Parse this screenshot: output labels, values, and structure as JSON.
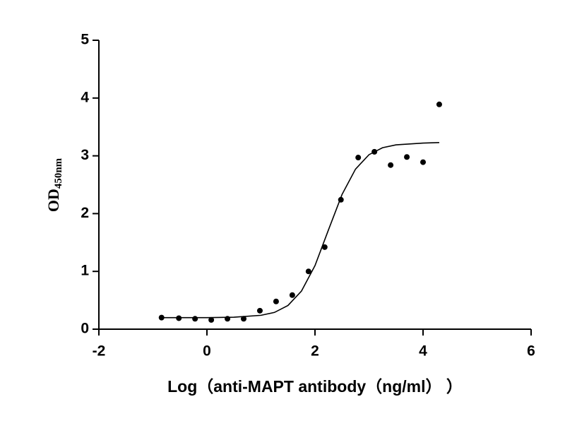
{
  "chart_data": {
    "type": "scatter",
    "xlabel": "Log（anti-MAPT antibody（ng/ml） ）",
    "ylabel": "OD",
    "ylabel_sub": "450nm",
    "xlim": [
      -2,
      6
    ],
    "xticks": [
      -2,
      0,
      2,
      4,
      6
    ],
    "ylim": [
      0,
      5
    ],
    "yticks": [
      0,
      1,
      2,
      3,
      4,
      5
    ],
    "series": [
      {
        "kind": "points",
        "color": "#000000",
        "x": [
          -0.84,
          -0.52,
          -0.22,
          0.08,
          0.38,
          0.68,
          0.98,
          1.28,
          1.58,
          1.88,
          2.18,
          2.48,
          2.8,
          3.1,
          3.4,
          3.7,
          4.0,
          4.3
        ],
        "values": [
          0.2,
          0.19,
          0.18,
          0.16,
          0.18,
          0.18,
          0.32,
          0.48,
          0.59,
          1.0,
          1.42,
          2.24,
          2.97,
          3.07,
          2.84,
          2.98,
          2.89,
          3.89
        ]
      },
      {
        "kind": "curve",
        "color": "#000000",
        "x": [
          -0.8,
          0,
          0.5,
          1,
          1.25,
          1.5,
          1.75,
          2,
          2.25,
          2.5,
          2.75,
          3,
          3.25,
          3.5,
          4,
          4.3
        ],
        "values": [
          0.2,
          0.2,
          0.207,
          0.24,
          0.29,
          0.41,
          0.66,
          1.1,
          1.72,
          2.33,
          2.77,
          3.02,
          3.14,
          3.19,
          3.22,
          3.23
        ]
      }
    ]
  }
}
